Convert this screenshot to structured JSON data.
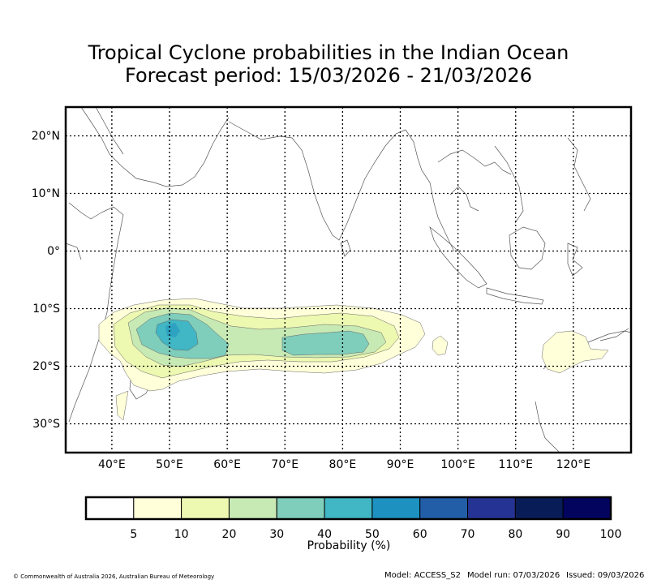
{
  "title_line1": "Tropical Cyclone probabilities in the Indian Ocean",
  "title_line2": "Forecast period: 15/03/2026 - 21/03/2026",
  "map": {
    "lon_labels": [
      "40°E",
      "50°E",
      "60°E",
      "70°E",
      "80°E",
      "90°E",
      "100°E",
      "110°E",
      "120°E"
    ],
    "lat_labels": [
      "20°N",
      "10°N",
      "0°",
      "10°S",
      "20°S",
      "30°S"
    ],
    "lon_values": [
      40,
      50,
      60,
      70,
      80,
      90,
      100,
      110,
      120
    ],
    "lat_values": [
      20,
      10,
      0,
      -10,
      -20,
      -30
    ],
    "lon_range": [
      32,
      130
    ],
    "lat_range": [
      -35,
      25
    ]
  },
  "colorbar": {
    "title": "Probability (%)",
    "ticks": [
      "5",
      "10",
      "20",
      "30",
      "40",
      "50",
      "60",
      "70",
      "80",
      "90",
      "100"
    ],
    "colors": [
      "#ffffff",
      "#ffffd9",
      "#edf8b1",
      "#c7e9b4",
      "#7fcdbb",
      "#41b6c4",
      "#1d91c0",
      "#225ea8",
      "#253494",
      "#081d58",
      "#03045e"
    ]
  },
  "footer": {
    "copyright": "© Commonwealth of Australia 2026, Australian Bureau of Meteorology",
    "model": "Model: ACCESS_S2",
    "model_run": "Model run: 07/03/2026",
    "issued": "Issued: 09/03/2026"
  }
}
